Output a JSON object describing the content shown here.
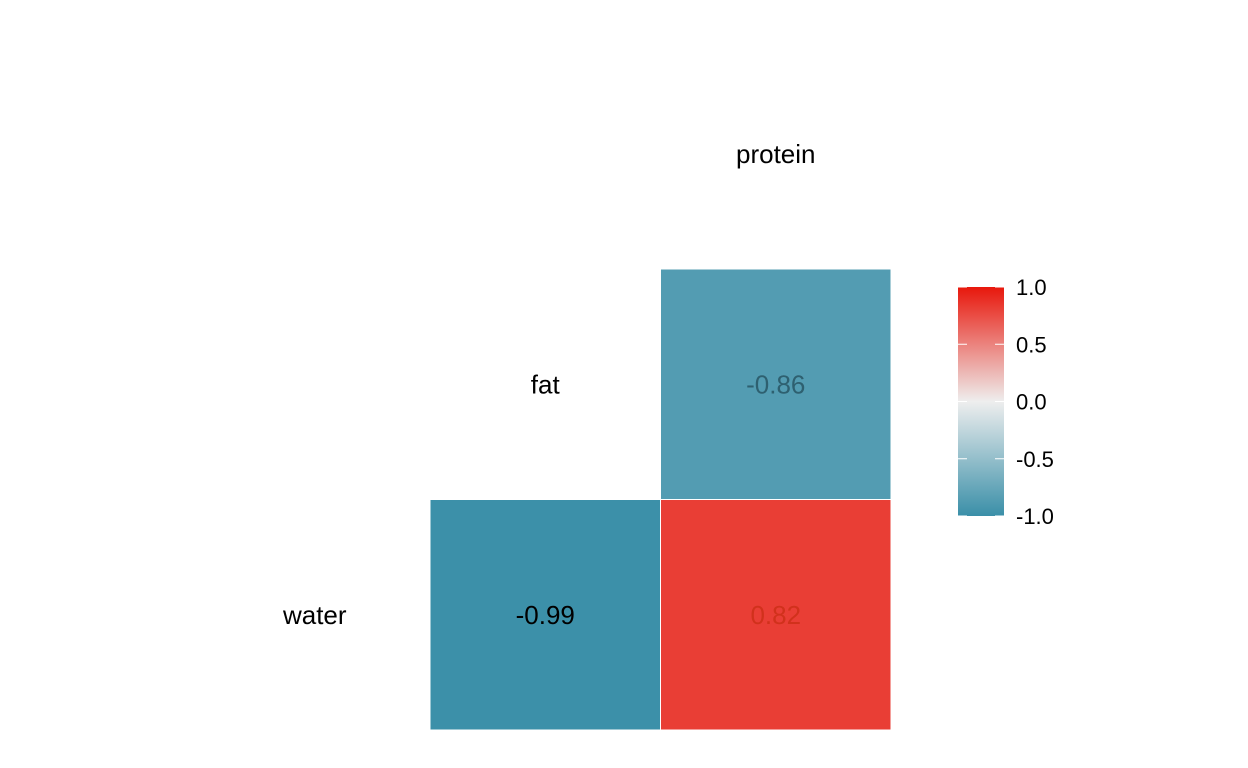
{
  "chart_data": {
    "type": "heatmap",
    "variables": [
      "water",
      "fat",
      "protein"
    ],
    "row_labels": [
      "fat",
      "water"
    ],
    "column_labels": [
      "protein"
    ],
    "cells": [
      {
        "row": "fat",
        "col": "protein",
        "value": -0.86,
        "label": "-0.86"
      },
      {
        "row": "water",
        "col": "fat",
        "value": -0.99,
        "label": "-0.99"
      },
      {
        "row": "water",
        "col": "protein",
        "value": 0.82,
        "label": "0.82"
      }
    ],
    "legend": {
      "position": "right",
      "range": [
        -1.0,
        1.0
      ],
      "ticks": [
        1.0,
        0.5,
        0.0,
        -0.5,
        -1.0
      ],
      "tick_labels": [
        "1.0",
        "0.5",
        "0.0",
        "-0.5",
        "-1.0"
      ]
    },
    "colors": {
      "low": "#3A8FA8",
      "mid": "#EEEEEE",
      "high": "#E8170C",
      "cell_border": "#ffffff"
    }
  }
}
